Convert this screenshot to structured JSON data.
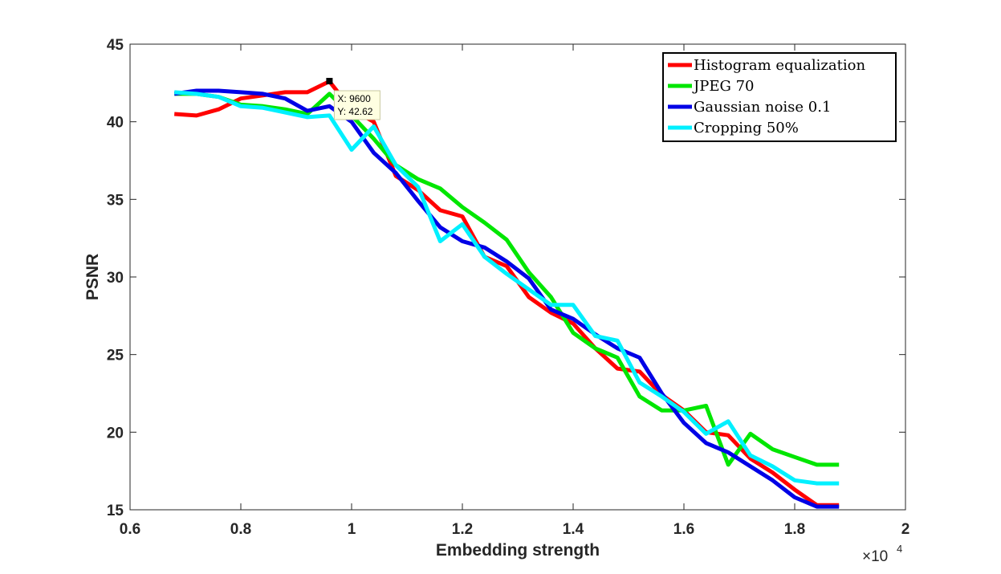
{
  "chart_data": {
    "type": "line",
    "title": "",
    "xlabel": "Embedding strength",
    "ylabel": "PSNR",
    "x_multiplier": "×10",
    "x_multiplier_exp": "4",
    "xlim": [
      0.6,
      2
    ],
    "ylim": [
      15,
      45
    ],
    "xticks": [
      "0.6",
      "0.8",
      "1",
      "1.2",
      "1.4",
      "1.6",
      "1.8",
      "2"
    ],
    "yticks": [
      "15",
      "20",
      "25",
      "30",
      "35",
      "40",
      "45"
    ],
    "x": [
      0.68,
      0.72,
      0.76,
      0.8,
      0.84,
      0.88,
      0.92,
      0.96,
      1.0,
      1.04,
      1.08,
      1.12,
      1.16,
      1.2,
      1.24,
      1.28,
      1.32,
      1.36,
      1.4,
      1.44,
      1.48,
      1.52,
      1.56,
      1.6,
      1.64,
      1.68,
      1.72,
      1.76,
      1.8,
      1.84,
      1.88
    ],
    "series": [
      {
        "name": "Histogram equalization",
        "color": "#ff0000",
        "values": [
          40.5,
          40.4,
          40.8,
          41.5,
          41.7,
          41.9,
          41.9,
          42.6,
          40.8,
          40.0,
          36.5,
          35.6,
          34.3,
          33.9,
          31.3,
          30.7,
          28.7,
          27.7,
          27.0,
          25.4,
          24.1,
          23.9,
          22.4,
          21.4,
          20.0,
          19.8,
          18.3,
          17.4,
          16.3,
          15.3,
          15.3
        ]
      },
      {
        "name": "JPEG 70",
        "color": "#00e600",
        "values": [
          41.8,
          41.8,
          41.6,
          41.1,
          41.0,
          40.8,
          40.5,
          41.8,
          40.4,
          38.9,
          37.2,
          36.3,
          35.7,
          34.5,
          33.5,
          32.4,
          30.3,
          28.7,
          26.4,
          25.4,
          24.8,
          22.3,
          21.4,
          21.4,
          21.7,
          17.9,
          19.9,
          18.9,
          18.4,
          17.9,
          17.9
        ]
      },
      {
        "name": "Gaussian noise 0.1",
        "color": "#0000e6",
        "values": [
          41.8,
          42.0,
          42.0,
          41.9,
          41.8,
          41.5,
          40.7,
          41.0,
          40.0,
          38.0,
          36.7,
          34.9,
          33.2,
          32.3,
          31.9,
          31.0,
          29.9,
          27.9,
          27.3,
          26.3,
          25.4,
          24.8,
          22.5,
          20.6,
          19.3,
          18.7,
          17.8,
          16.9,
          15.8,
          15.2,
          15.2
        ]
      },
      {
        "name": "Cropping 50%",
        "color": "#00f0ff",
        "values": [
          41.9,
          41.8,
          41.6,
          41.0,
          40.9,
          40.6,
          40.3,
          40.4,
          38.2,
          39.7,
          37.2,
          35.8,
          32.3,
          33.4,
          31.3,
          30.2,
          29.2,
          28.2,
          28.2,
          26.2,
          25.9,
          23.2,
          22.3,
          21.3,
          19.9,
          20.7,
          18.5,
          17.8,
          16.9,
          16.7,
          16.7
        ]
      }
    ],
    "legend": "top-right",
    "datatip": {
      "x_label": "X: 9600",
      "y_label": "Y: 42.62",
      "x": 0.96,
      "y": 42.62
    }
  }
}
